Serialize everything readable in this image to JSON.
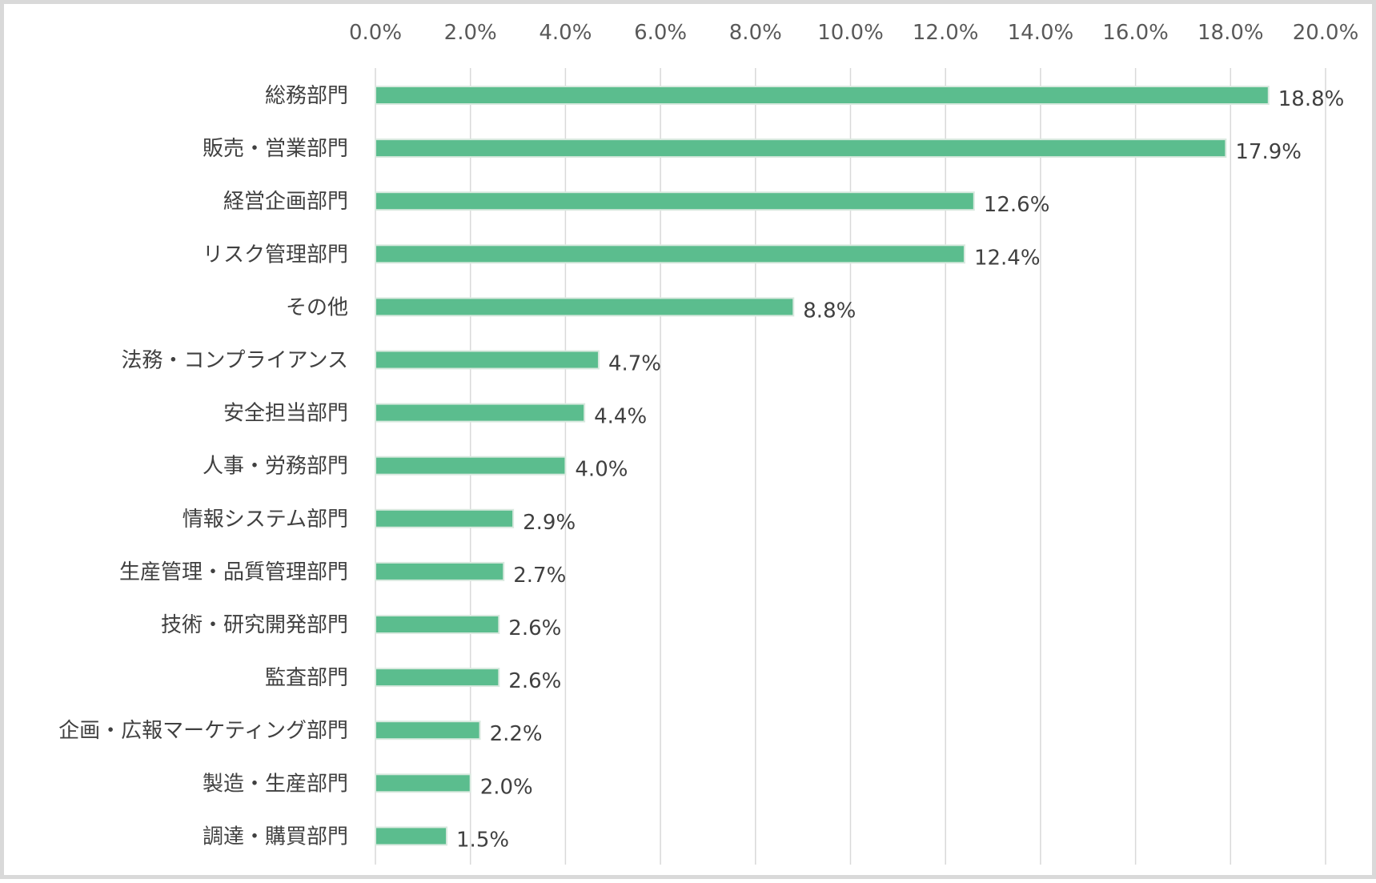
{
  "chart_data": {
    "type": "bar",
    "orientation": "horizontal",
    "categories": [
      "総務部門",
      "販売・営業部門",
      "経営企画部門",
      "リスク管理部門",
      "その他",
      "法務・コンプライアンス",
      "安全担当部門",
      "人事・労務部門",
      "情報システム部門",
      "生産管理・品質管理部門",
      "技術・研究開発部門",
      "監査部門",
      "企画・広報マーケティング部門",
      "製造・生産部門",
      "調達・購買部門"
    ],
    "values": [
      18.8,
      17.9,
      12.6,
      12.4,
      8.8,
      4.7,
      4.4,
      4.0,
      2.9,
      2.7,
      2.6,
      2.6,
      2.2,
      2.0,
      1.5
    ],
    "data_labels": [
      "18.8%",
      "17.9%",
      "12.6%",
      "12.4%",
      "8.8%",
      "4.7%",
      "4.4%",
      "4.0%",
      "2.9%",
      "2.7%",
      "2.6%",
      "2.6%",
      "2.2%",
      "2.0%",
      "1.5%"
    ],
    "x_ticks": [
      "0.0%",
      "2.0%",
      "4.0%",
      "6.0%",
      "8.0%",
      "10.0%",
      "12.0%",
      "14.0%",
      "16.0%",
      "18.0%",
      "20.0%"
    ],
    "xlim": [
      0,
      20
    ],
    "x_axis_position": "top",
    "grid": true,
    "legend": "none",
    "title": "",
    "xlabel": "",
    "ylabel": "",
    "bar_color": "#5bbd8e",
    "bar_edge_color": "#d9e9df"
  }
}
